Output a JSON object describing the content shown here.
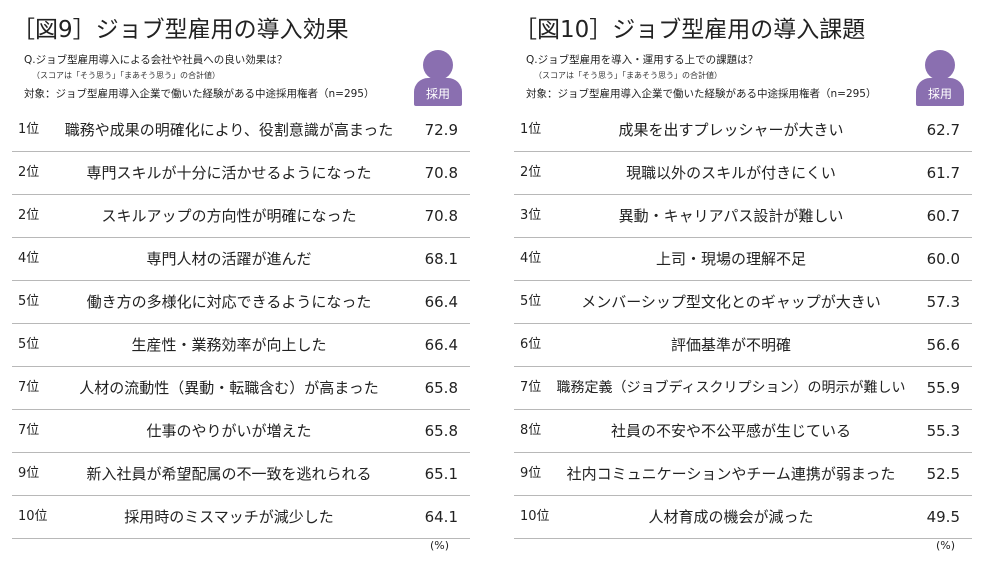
{
  "chart_data": [
    {
      "type": "table",
      "title": "［図9］ジョブ型雇用の導入効果",
      "question": "Q.ジョブ型雇用導入による会社や社員への良い効果は？",
      "note": "（スコアは「そう思う」「まあそう思う」の合計値）",
      "target": "対象：ジョブ型雇用導入企業で働いた経験がある中途採用権者（n=295）",
      "badge": "採用",
      "unit": "(%)",
      "rows": [
        {
          "rank": "1位",
          "label": "職務や成果の明確化により、役割意識が高まった",
          "value": "72.9"
        },
        {
          "rank": "2位",
          "label": "専門スキルが十分に活かせるようになった",
          "value": "70.8"
        },
        {
          "rank": "2位",
          "label": "スキルアップの方向性が明確になった",
          "value": "70.8"
        },
        {
          "rank": "4位",
          "label": "専門人材の活躍が進んだ",
          "value": "68.1"
        },
        {
          "rank": "5位",
          "label": "働き方の多様化に対応できるようになった",
          "value": "66.4"
        },
        {
          "rank": "5位",
          "label": "生産性・業務効率が向上した",
          "value": "66.4"
        },
        {
          "rank": "7位",
          "label": "人材の流動性（異動・転職含む）が高まった",
          "value": "65.8"
        },
        {
          "rank": "7位",
          "label": "仕事のやりがいが増えた",
          "value": "65.8"
        },
        {
          "rank": "9位",
          "label": "新入社員が希望配属の不一致を逃れられる",
          "value": "65.1"
        },
        {
          "rank": "10位",
          "label": "採用時のミスマッチが減少した",
          "value": "64.1"
        }
      ]
    },
    {
      "type": "table",
      "title": "［図10］ジョブ型雇用の導入課題",
      "question": "Q.ジョブ型雇用を導入・運用する上での課題は？",
      "note": "（スコアは「そう思う」「まあそう思う」の合計値）",
      "target": "対象：ジョブ型雇用導入企業で働いた経験がある中途採用権者（n=295）",
      "badge": "採用",
      "unit": "(%)",
      "rows": [
        {
          "rank": "1位",
          "label": "成果を出すプレッシャーが大きい",
          "value": "62.7"
        },
        {
          "rank": "2位",
          "label": "現職以外のスキルが付きにくい",
          "value": "61.7"
        },
        {
          "rank": "3位",
          "label": "異動・キャリアパス設計が難しい",
          "value": "60.7"
        },
        {
          "rank": "4位",
          "label": "上司・現場の理解不足",
          "value": "60.0"
        },
        {
          "rank": "5位",
          "label": "メンバーシップ型文化とのギャップが大きい",
          "value": "57.3"
        },
        {
          "rank": "6位",
          "label": "評価基準が不明確",
          "value": "56.6"
        },
        {
          "rank": "7位",
          "label": "職務定義（ジョブディスクリプション）の明示が難しい",
          "value": "55.9"
        },
        {
          "rank": "8位",
          "label": "社員の不安や不公平感が生じている",
          "value": "55.3"
        },
        {
          "rank": "9位",
          "label": "社内コミュニケーションやチーム連携が弱まった",
          "value": "52.5"
        },
        {
          "rank": "10位",
          "label": "人材育成の機会が減った",
          "value": "49.5"
        }
      ]
    }
  ],
  "colors": {
    "badge": "#8a6fb0",
    "divider": "#b8b8b8"
  }
}
